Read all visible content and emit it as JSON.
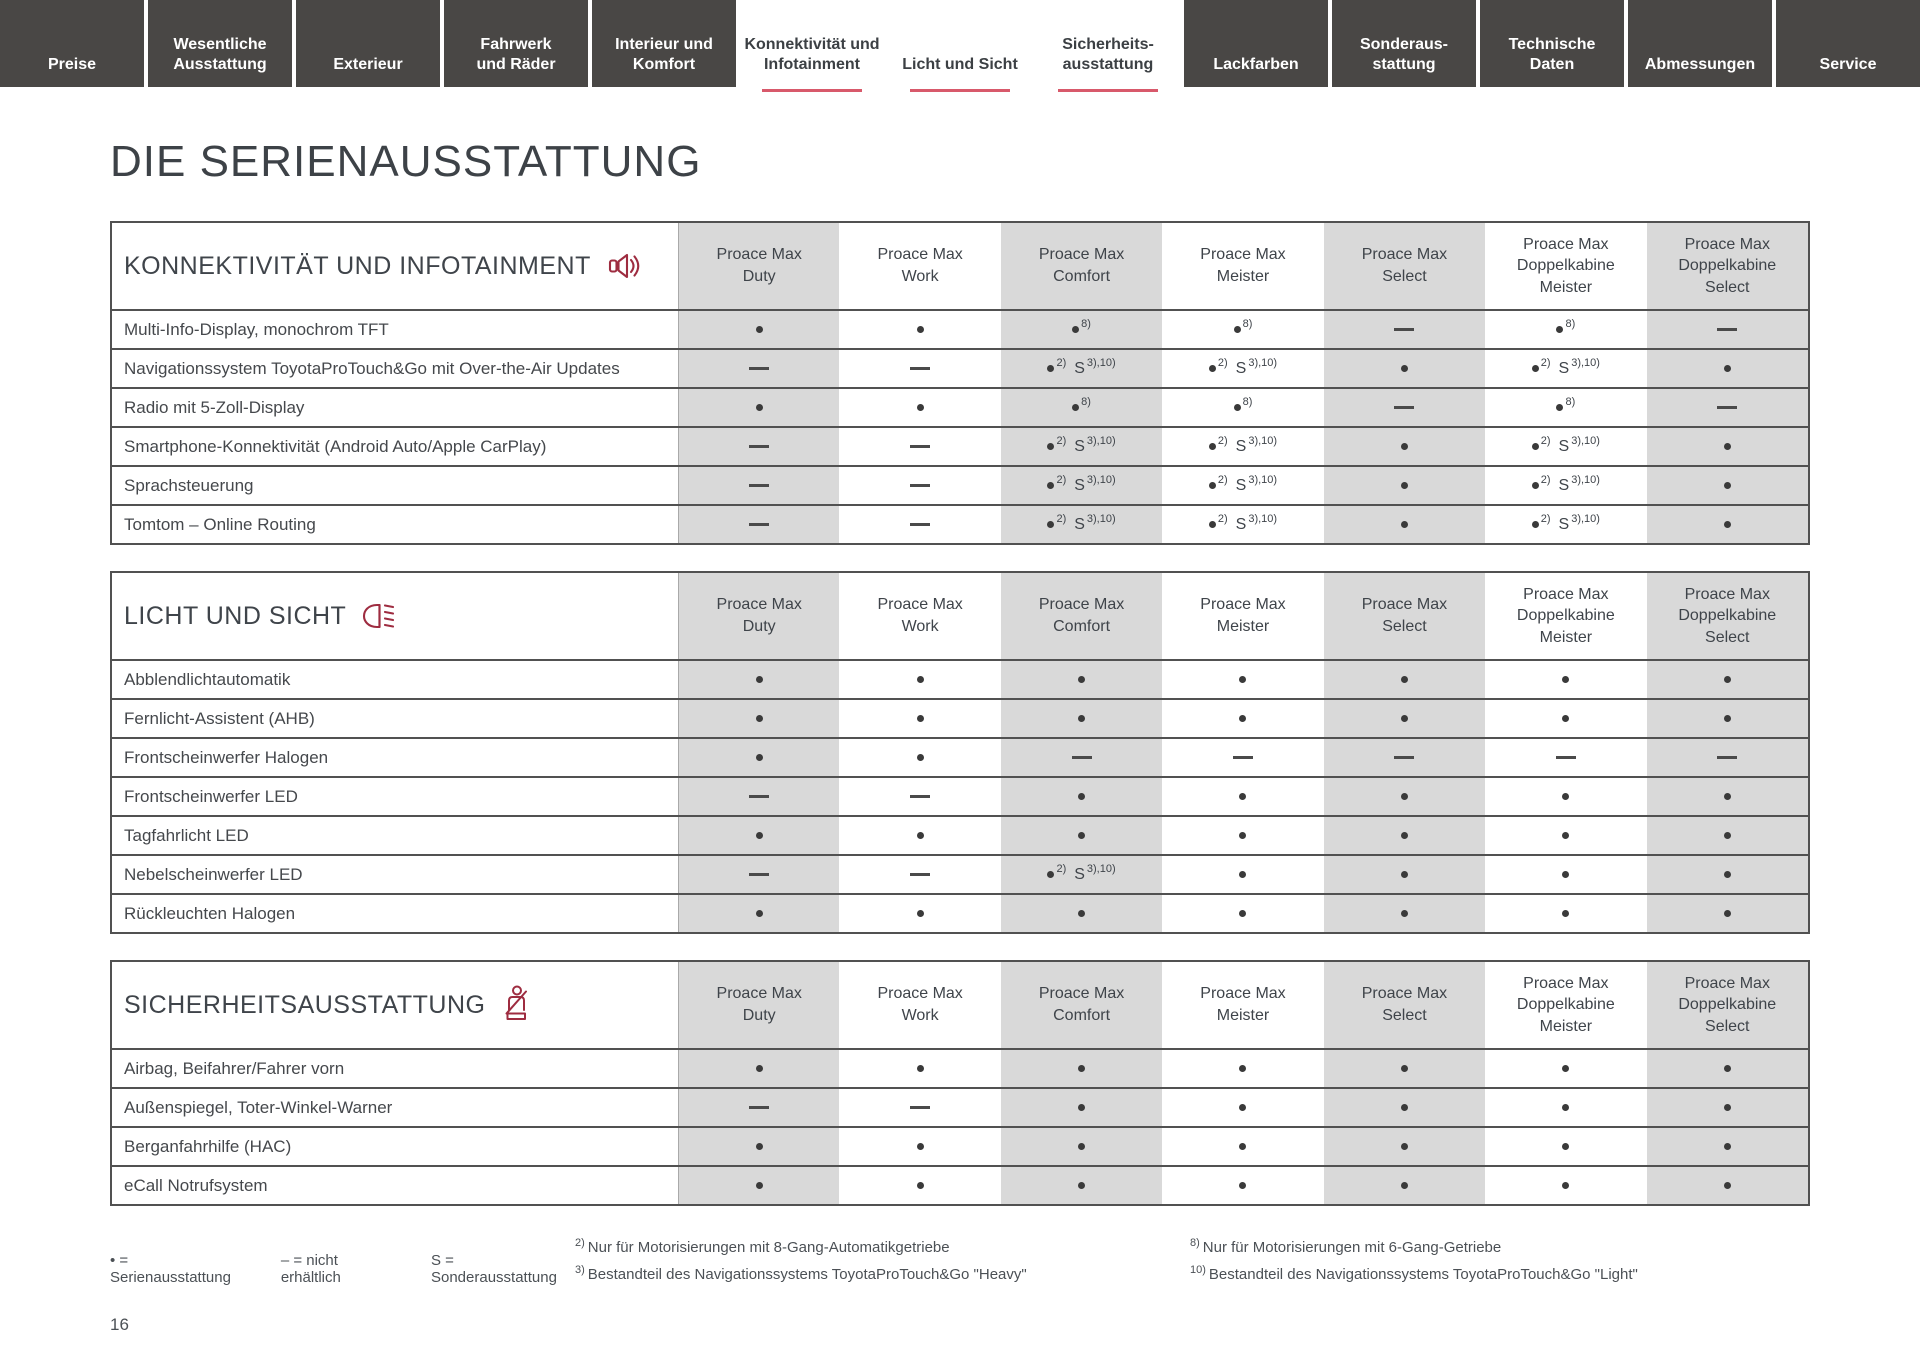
{
  "nav": {
    "tabs": [
      {
        "label": "Preise",
        "active": false
      },
      {
        "label": "Wesentliche\nAusstattung",
        "active": false
      },
      {
        "label": "Exterieur",
        "active": false
      },
      {
        "label": "Fahrwerk\nund Räder",
        "active": false
      },
      {
        "label": "Interieur und\nKomfort",
        "active": false
      },
      {
        "label": "Konnektivität und\nInfotainment",
        "active": true
      },
      {
        "label": "Licht und Sicht",
        "active": true
      },
      {
        "label": "Sicherheits-\nausstattung",
        "active": true
      },
      {
        "label": "Lackfarben",
        "active": false
      },
      {
        "label": "Sonderaus-\nstattung",
        "active": false
      },
      {
        "label": "Technische\nDaten",
        "active": false
      },
      {
        "label": "Abmessungen",
        "active": false
      },
      {
        "label": "Service",
        "active": false
      }
    ]
  },
  "page_title": "DIE SERIENAUSSTATTUNG",
  "columns": [
    "Proace Max\nDuty",
    "Proace Max\nWork",
    "Proace Max\nComfort",
    "Proace Max\nMeister",
    "Proace Max\nSelect",
    "Proace Max\nDoppelkabine\nMeister",
    "Proace Max\nDoppelkabine\nSelect"
  ],
  "markers": {
    "dot": {
      "kind": "dot"
    },
    "dash": {
      "kind": "dash"
    },
    "dot8": {
      "kind": "dot",
      "sup": "8)"
    },
    "dot2S": {
      "kind": "dot",
      "sup": "2)",
      "s": "S",
      "s_sup": "3),10)"
    }
  },
  "tables": [
    {
      "id": "konnektivitaet-und-infotainment",
      "title": "KONNEKTIVITÄT UND INFOTAINMENT",
      "icon": "speaker",
      "rows": [
        {
          "label": "Multi-Info-Display, monochrom TFT",
          "cells": [
            "dot",
            "dot",
            "dot8",
            "dot8",
            "dash",
            "dot8",
            "dash"
          ]
        },
        {
          "label": "Navigationssystem ToyotaProTouch&Go mit Over-the-Air Updates",
          "cells": [
            "dash",
            "dash",
            "dot2S",
            "dot2S",
            "dot",
            "dot2S",
            "dot"
          ]
        },
        {
          "label": "Radio mit 5-Zoll-Display",
          "cells": [
            "dot",
            "dot",
            "dot8",
            "dot8",
            "dash",
            "dot8",
            "dash"
          ]
        },
        {
          "label": "Smartphone-Konnektivität (Android Auto/Apple CarPlay)",
          "cells": [
            "dash",
            "dash",
            "dot2S",
            "dot2S",
            "dot",
            "dot2S",
            "dot"
          ]
        },
        {
          "label": "Sprachsteuerung",
          "cells": [
            "dash",
            "dash",
            "dot2S",
            "dot2S",
            "dot",
            "dot2S",
            "dot"
          ]
        },
        {
          "label": "Tomtom – Online Routing",
          "cells": [
            "dash",
            "dash",
            "dot2S",
            "dot2S",
            "dot",
            "dot2S",
            "dot"
          ]
        }
      ]
    },
    {
      "id": "licht-und-sicht",
      "title": "LICHT UND SICHT",
      "icon": "headlight",
      "rows": [
        {
          "label": "Abblendlichtautomatik",
          "cells": [
            "dot",
            "dot",
            "dot",
            "dot",
            "dot",
            "dot",
            "dot"
          ]
        },
        {
          "label": "Fernlicht-Assistent (AHB)",
          "cells": [
            "dot",
            "dot",
            "dot",
            "dot",
            "dot",
            "dot",
            "dot"
          ]
        },
        {
          "label": "Frontscheinwerfer Halogen",
          "cells": [
            "dot",
            "dot",
            "dash",
            "dash",
            "dash",
            "dash",
            "dash"
          ]
        },
        {
          "label": "Frontscheinwerfer LED",
          "cells": [
            "dash",
            "dash",
            "dot",
            "dot",
            "dot",
            "dot",
            "dot"
          ]
        },
        {
          "label": "Tagfahrlicht LED",
          "cells": [
            "dot",
            "dot",
            "dot",
            "dot",
            "dot",
            "dot",
            "dot"
          ]
        },
        {
          "label": "Nebelscheinwerfer LED",
          "cells": [
            "dash",
            "dash",
            "dot2S",
            "dot",
            "dot",
            "dot",
            "dot"
          ]
        },
        {
          "label": "Rückleuchten Halogen",
          "cells": [
            "dot",
            "dot",
            "dot",
            "dot",
            "dot",
            "dot",
            "dot"
          ]
        }
      ]
    },
    {
      "id": "sicherheitsausstattung",
      "title": "SICHERHEITSAUSSTATTUNG",
      "icon": "seatbelt",
      "rows": [
        {
          "label": "Airbag, Beifahrer/Fahrer vorn",
          "cells": [
            "dot",
            "dot",
            "dot",
            "dot",
            "dot",
            "dot",
            "dot"
          ]
        },
        {
          "label": "Außenspiegel, Toter-Winkel-Warner",
          "cells": [
            "dash",
            "dash",
            "dot",
            "dot",
            "dot",
            "dot",
            "dot"
          ]
        },
        {
          "label": "Berganfahrhilfe (HAC)",
          "cells": [
            "dot",
            "dot",
            "dot",
            "dot",
            "dot",
            "dot",
            "dot"
          ]
        },
        {
          "label": "eCall Notrufsystem",
          "cells": [
            "dot",
            "dot",
            "dot",
            "dot",
            "dot",
            "dot",
            "dot"
          ]
        }
      ]
    }
  ],
  "footnotes": {
    "legend": [
      "• = Serienausstattung",
      "– = nicht erhältlich",
      "S = Sonderausstattung"
    ],
    "col1": [
      {
        "sup": "2)",
        "text": "Nur für Motorisierungen mit 8-Gang-Automatikgetriebe"
      },
      {
        "sup": "3)",
        "text": "Bestandteil des Navigationssystems ToyotaProTouch&Go \"Heavy\""
      }
    ],
    "col2": [
      {
        "sup": "8)",
        "text": "Nur für Motorisierungen mit 6-Gang-Getriebe"
      },
      {
        "sup": "10)",
        "text": "Bestandteil des Navigationssystems ToyotaProTouch&Go \"Light\""
      }
    ]
  },
  "page_number": "16",
  "colors": {
    "accent_red": "#9e2c40",
    "tab_underline": "#d8596b",
    "tab_dark": "#494745",
    "shade_gray": "#d9d9d9"
  }
}
